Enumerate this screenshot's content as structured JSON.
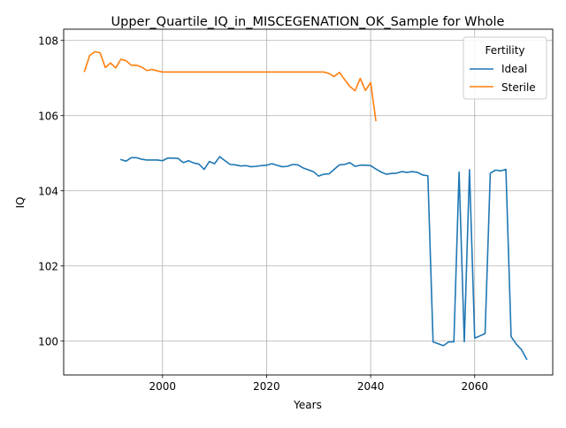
{
  "chart_data": {
    "type": "line",
    "title": "Upper_Quartile_IQ_in_MISCEGENATION_OK_Sample for Whole",
    "xlabel": "Years",
    "ylabel": "IQ",
    "xlim": [
      1981,
      2075
    ],
    "ylim": [
      99.1,
      108.3
    ],
    "x_ticks": [
      2000,
      2020,
      2040,
      2060
    ],
    "y_ticks": [
      100,
      102,
      104,
      106,
      108
    ],
    "grid": true,
    "legend": {
      "title": "Fertility",
      "placement": "top-right"
    },
    "series": [
      {
        "name": "Ideal",
        "color": "#1f77b4",
        "x": [
          1992,
          1993,
          1994,
          1995,
          1996,
          1997,
          1998,
          1999,
          2000,
          2001,
          2002,
          2003,
          2004,
          2005,
          2006,
          2007,
          2008,
          2009,
          2010,
          2011,
          2012,
          2013,
          2014,
          2015,
          2016,
          2017,
          2018,
          2019,
          2020,
          2021,
          2022,
          2023,
          2024,
          2025,
          2026,
          2027,
          2028,
          2029,
          2030,
          2031,
          2032,
          2033,
          2034,
          2035,
          2036,
          2037,
          2038,
          2039,
          2040,
          2041,
          2042,
          2043,
          2044,
          2045,
          2046,
          2047,
          2048,
          2049,
          2050,
          2051,
          2052,
          2053,
          2054,
          2055,
          2056,
          2057,
          2058,
          2059,
          2060,
          2061,
          2062,
          2063,
          2064,
          2065,
          2066,
          2067,
          2068,
          2069,
          2070
        ],
        "y": [
          104.83,
          104.79,
          104.88,
          104.88,
          104.84,
          104.82,
          104.82,
          104.82,
          104.8,
          104.87,
          104.87,
          104.86,
          104.75,
          104.8,
          104.74,
          104.71,
          104.57,
          104.78,
          104.72,
          104.91,
          104.8,
          104.7,
          104.69,
          104.66,
          104.67,
          104.64,
          104.65,
          104.67,
          104.68,
          104.72,
          104.68,
          104.64,
          104.65,
          104.7,
          104.69,
          104.61,
          104.56,
          104.51,
          104.39,
          104.44,
          104.45,
          104.57,
          104.69,
          104.7,
          104.75,
          104.65,
          104.68,
          104.68,
          104.67,
          104.58,
          104.5,
          104.44,
          104.46,
          104.47,
          104.51,
          104.49,
          104.51,
          104.49,
          104.42,
          104.4,
          99.98,
          99.93,
          99.88,
          99.98,
          99.98,
          104.5,
          99.98,
          104.56,
          100.08,
          100.14,
          100.2,
          104.47,
          104.55,
          104.53,
          104.57,
          100.12,
          99.92,
          99.77,
          99.52
        ]
      },
      {
        "name": "Sterile",
        "color": "#ff7f0e",
        "x": [
          1985,
          1986,
          1987,
          1988,
          1989,
          1990,
          1991,
          1992,
          1993,
          1994,
          1995,
          1996,
          1997,
          1998,
          1999,
          2000,
          2001,
          2002,
          2003,
          2004,
          2005,
          2006,
          2007,
          2008,
          2009,
          2010,
          2011,
          2012,
          2013,
          2014,
          2015,
          2016,
          2017,
          2018,
          2019,
          2020,
          2021,
          2022,
          2023,
          2024,
          2025,
          2026,
          2027,
          2028,
          2029,
          2030,
          2031,
          2032,
          2033,
          2034,
          2035,
          2036,
          2037,
          2038,
          2039,
          2040,
          2041
        ],
        "y": [
          107.18,
          107.6,
          107.7,
          107.67,
          107.28,
          107.4,
          107.27,
          107.5,
          107.46,
          107.34,
          107.34,
          107.29,
          107.2,
          107.23,
          107.19,
          107.16,
          107.16,
          107.16,
          107.16,
          107.16,
          107.16,
          107.16,
          107.16,
          107.16,
          107.16,
          107.16,
          107.16,
          107.16,
          107.16,
          107.16,
          107.16,
          107.16,
          107.16,
          107.16,
          107.16,
          107.16,
          107.16,
          107.16,
          107.16,
          107.16,
          107.16,
          107.16,
          107.16,
          107.16,
          107.16,
          107.16,
          107.16,
          107.12,
          107.04,
          107.15,
          106.96,
          106.78,
          106.66,
          106.99,
          106.67,
          106.88,
          105.87
        ]
      }
    ]
  }
}
